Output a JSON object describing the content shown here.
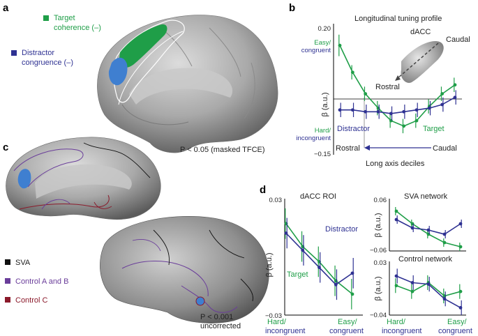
{
  "panels": {
    "a": {
      "letter": "a",
      "legend": [
        {
          "label_line1": "Target",
          "label_line2": "coherence (–)",
          "color": "#1f9e48"
        },
        {
          "label_line1": "Distractor",
          "label_line2": "congruence (–)",
          "color": "#2e3192"
        }
      ],
      "stat": "P < 0.05 (masked TFCE)"
    },
    "b": {
      "letter": "b",
      "title": "Longitudinal tuning profile",
      "inset_labels": {
        "dacc": "dACC",
        "caudal": "Caudal",
        "rostral": "Rostral"
      },
      "y_top": "Easy/",
      "y_top2": "congruent",
      "y_bottom": "Hard/",
      "y_bottom2": "incongruent",
      "ylabel": "β (a.u.)",
      "xlabel": "Long axis deciles",
      "axis_left": "Rostral",
      "axis_right": "Caudal",
      "series_labels": {
        "distractor": "Distractor",
        "target": "Target"
      }
    },
    "c": {
      "letter": "c",
      "legend": [
        {
          "label": "SVA",
          "color": "#111111"
        },
        {
          "label": "Control A and B",
          "color": "#6a3d9a"
        },
        {
          "label": "Control C",
          "color": "#8b1a2b"
        }
      ],
      "stat_line1": "P < 0.001",
      "stat_line2": "uncorrected"
    },
    "d": {
      "letter": "d",
      "x_left1": "Hard/",
      "x_left2": "incongruent",
      "x_right1": "Easy/",
      "x_right2": "congruent",
      "ylabel": "β (a.u.)",
      "subplots": {
        "roi": {
          "title": "dACC ROI",
          "distractor_label": "Distractor",
          "target_label": "Target"
        },
        "sva": {
          "title": "SVA network"
        },
        "ctrl": {
          "title": "Control network"
        }
      }
    }
  },
  "chart_data": [
    {
      "id": "b",
      "type": "line",
      "title": "Longitudinal tuning profile",
      "xlabel": "Long axis deciles",
      "ylabel": "β (a.u.)",
      "ylim": [
        -0.15,
        0.2
      ],
      "yticks": [
        "0.20",
        "−0.15"
      ],
      "x": [
        1,
        2,
        3,
        4,
        5,
        6,
        7,
        8,
        9,
        10
      ],
      "series": [
        {
          "name": "Target",
          "color": "#1f9e48",
          "values": [
            0.155,
            0.08,
            0.02,
            -0.02,
            -0.055,
            -0.07,
            -0.055,
            -0.015,
            0.02,
            0.045
          ],
          "err": [
            0.03,
            0.02,
            0.02,
            0.02,
            0.02,
            0.02,
            0.02,
            0.02,
            0.02,
            0.02
          ]
        },
        {
          "name": "Distractor",
          "color": "#2e3192",
          "values": [
            -0.025,
            -0.025,
            -0.03,
            -0.03,
            -0.035,
            -0.03,
            -0.025,
            -0.02,
            -0.01,
            0.01
          ],
          "err": [
            0.02,
            0.02,
            0.02,
            0.02,
            0.02,
            0.02,
            0.02,
            0.02,
            0.02,
            0.02
          ]
        }
      ]
    },
    {
      "id": "d-roi",
      "type": "line",
      "title": "dACC ROI",
      "ylabel": "β (a.u.)",
      "ylim": [
        -0.03,
        0.03
      ],
      "yticks": [
        "0.03",
        "−0.03"
      ],
      "x": [
        1,
        2,
        3,
        4,
        5
      ],
      "series": [
        {
          "name": "Target",
          "color": "#1f9e48",
          "values": [
            0.018,
            0.006,
            -0.002,
            -0.012,
            -0.019
          ],
          "err": [
            0.008,
            0.008,
            0.008,
            0.008,
            0.008
          ]
        },
        {
          "name": "Distractor",
          "color": "#2e3192",
          "values": [
            0.013,
            0.004,
            -0.005,
            -0.014,
            -0.008
          ],
          "err": [
            0.008,
            0.008,
            0.008,
            0.008,
            0.008
          ]
        }
      ]
    },
    {
      "id": "d-sva",
      "type": "line",
      "title": "SVA network",
      "ylabel": "β (a.u.)",
      "ylim": [
        -0.06,
        0.06
      ],
      "yticks": [
        "0.06",
        "−0.06"
      ],
      "x": [
        1,
        2,
        3,
        4,
        5
      ],
      "series": [
        {
          "name": "Target",
          "color": "#1f9e48",
          "values": [
            0.035,
            0.005,
            -0.02,
            -0.04,
            -0.05
          ],
          "err": [
            0.01,
            0.01,
            0.01,
            0.01,
            0.01
          ]
        },
        {
          "name": "Distractor",
          "color": "#2e3192",
          "values": [
            0.015,
            -0.005,
            -0.01,
            -0.02,
            0.005
          ],
          "err": [
            0.01,
            0.01,
            0.01,
            0.01,
            0.01
          ]
        }
      ]
    },
    {
      "id": "d-ctrl",
      "type": "line",
      "title": "Control network",
      "ylabel": "β (a.u.)",
      "ylim": [
        -0.04,
        0.03
      ],
      "yticks": [
        "0.03",
        "−0.04"
      ],
      "x": [
        1,
        2,
        3,
        4,
        5
      ],
      "series": [
        {
          "name": "Target",
          "color": "#1f9e48",
          "values": [
            0.0,
            -0.008,
            0.004,
            -0.014,
            -0.008
          ],
          "err": [
            0.01,
            0.01,
            0.01,
            0.01,
            0.01
          ]
        },
        {
          "name": "Distractor",
          "color": "#2e3192",
          "values": [
            0.013,
            0.004,
            0.002,
            -0.018,
            -0.03
          ],
          "err": [
            0.01,
            0.01,
            0.01,
            0.01,
            0.01
          ]
        }
      ]
    }
  ]
}
